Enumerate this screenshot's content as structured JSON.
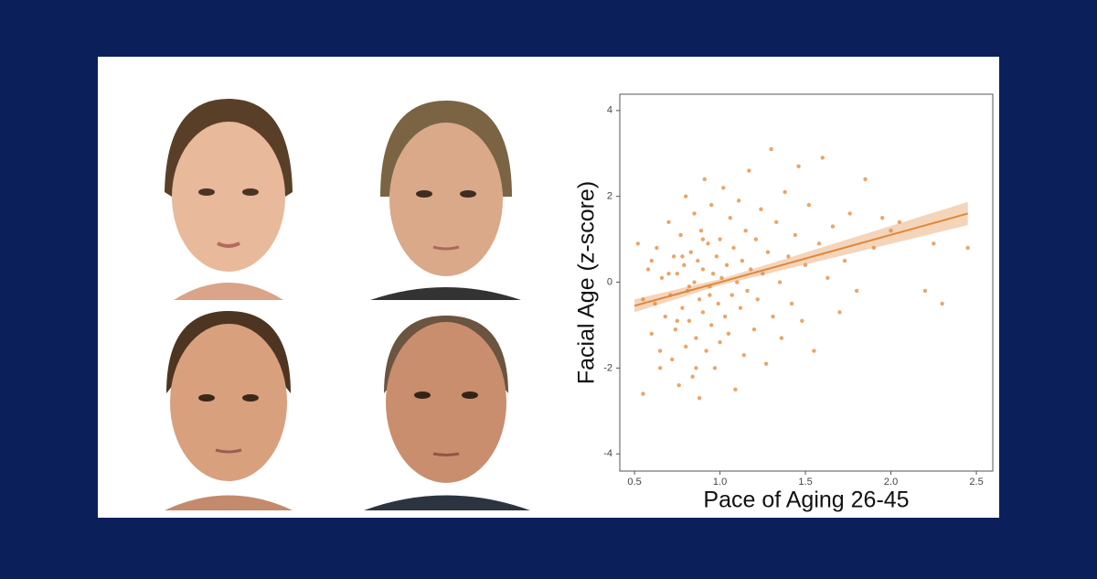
{
  "chart_data": {
    "type": "scatter",
    "x_label": "Pace of Aging 26-45",
    "y_label": "Facial Age (z-score)",
    "color": "#e0883a",
    "xlim": [
      0.414,
      2.596
    ],
    "ylim": [
      -4.4,
      4.38
    ],
    "xticks": [
      {
        "value": 0.5,
        "label": "0.5"
      },
      {
        "value": 1.0,
        "label": "1.0"
      },
      {
        "value": 1.5,
        "label": "1.5"
      },
      {
        "value": 2.0,
        "label": "2.0"
      },
      {
        "value": 2.5,
        "label": "2.5"
      }
    ],
    "yticks": [
      4,
      2,
      0,
      -2,
      -4
    ],
    "x": [
      0.52,
      0.55,
      0.58,
      0.6,
      0.62,
      0.63,
      0.65,
      0.66,
      0.68,
      0.7,
      0.71,
      0.72,
      0.73,
      0.74,
      0.75,
      0.76,
      0.77,
      0.78,
      0.79,
      0.8,
      0.8,
      0.81,
      0.82,
      0.83,
      0.84,
      0.85,
      0.85,
      0.86,
      0.87,
      0.88,
      0.88,
      0.89,
      0.9,
      0.9,
      0.91,
      0.92,
      0.93,
      0.94,
      0.95,
      0.95,
      0.96,
      0.97,
      0.98,
      0.99,
      1.0,
      1.0,
      1.01,
      1.02,
      1.03,
      1.04,
      1.05,
      1.06,
      1.07,
      1.08,
      1.09,
      1.1,
      1.11,
      1.12,
      1.13,
      1.14,
      1.15,
      1.16,
      1.17,
      1.18,
      1.2,
      1.21,
      1.22,
      1.24,
      1.25,
      1.27,
      1.28,
      1.3,
      1.31,
      1.33,
      1.35,
      1.36,
      1.38,
      1.4,
      1.42,
      1.44,
      1.46,
      1.48,
      1.5,
      1.52,
      1.55,
      1.58,
      1.6,
      1.63,
      1.66,
      1.7,
      1.73,
      1.76,
      1.8,
      1.85,
      1.9,
      1.95,
      2.0,
      2.05,
      2.2,
      2.25,
      2.3,
      2.45,
      0.55,
      0.6,
      0.65,
      0.7,
      0.75,
      0.78,
      0.82,
      0.86,
      0.9,
      0.94
    ],
    "y": [
      0.9,
      -2.6,
      0.3,
      -1.2,
      -0.5,
      0.8,
      -2.0,
      0.1,
      -0.8,
      1.4,
      -0.3,
      -1.8,
      0.6,
      -1.1,
      0.2,
      -2.4,
      1.1,
      -0.6,
      0.4,
      -1.5,
      2.0,
      -0.2,
      -0.9,
      0.7,
      -2.2,
      0.0,
      1.6,
      -1.3,
      0.5,
      -0.4,
      -2.7,
      1.2,
      -0.7,
      0.3,
      2.4,
      -1.6,
      0.9,
      -0.1,
      -1.0,
      1.8,
      0.2,
      -2.0,
      0.6,
      -0.5,
      1.0,
      -1.4,
      0.1,
      2.2,
      -0.8,
      0.4,
      -1.2,
      1.5,
      -0.3,
      0.8,
      -2.5,
      0.0,
      1.9,
      -0.6,
      0.5,
      -1.7,
      1.2,
      -0.2,
      2.6,
      0.3,
      -1.1,
      1.0,
      -0.4,
      1.7,
      0.2,
      -1.9,
      0.7,
      3.1,
      -0.8,
      1.4,
      0.0,
      -1.3,
      2.1,
      0.6,
      -0.5,
      1.1,
      2.7,
      -0.9,
      0.4,
      1.8,
      -1.6,
      0.9,
      2.9,
      0.1,
      1.3,
      -0.7,
      0.5,
      1.6,
      -0.2,
      2.4,
      0.8,
      1.5,
      1.2,
      1.4,
      -0.2,
      0.9,
      -0.5,
      0.8,
      -0.4,
      0.5,
      -1.6,
      0.2,
      -0.9,
      0.6,
      -0.1,
      -2.0,
      1.0,
      -0.3
    ],
    "fit": {
      "x": [
        0.5,
        1.0,
        2.45
      ],
      "y": [
        -0.55,
        0.0,
        1.6
      ],
      "lower": [
        -0.7,
        -0.07,
        1.33
      ],
      "upper": [
        -0.4,
        0.07,
        1.87
      ]
    }
  }
}
